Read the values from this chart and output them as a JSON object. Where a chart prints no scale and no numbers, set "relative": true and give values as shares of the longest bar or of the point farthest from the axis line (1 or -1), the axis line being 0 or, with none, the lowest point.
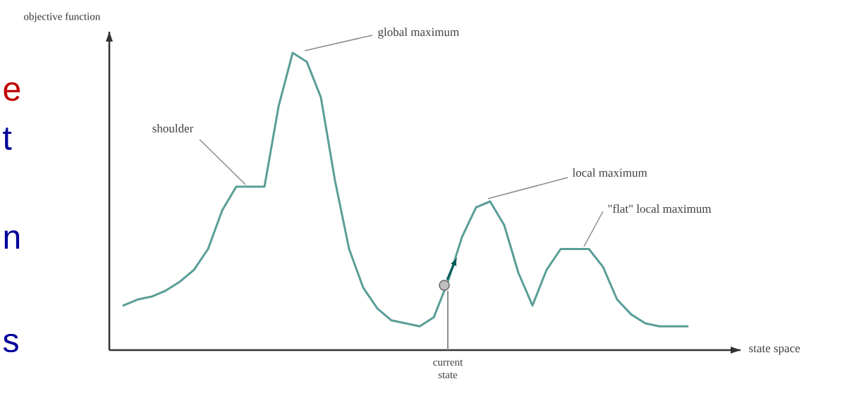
{
  "chart_data": {
    "type": "line",
    "relative": true,
    "xlabel": "state space",
    "ylabel": "objective function",
    "categories": [
      null,
      null,
      null,
      null,
      null,
      null,
      null,
      null,
      null,
      null,
      null,
      null,
      null,
      null,
      null,
      null,
      null,
      null,
      null,
      null,
      null,
      null,
      null,
      null,
      null,
      null,
      null,
      null,
      null,
      null,
      null,
      null,
      null,
      null,
      null,
      null,
      null,
      null,
      null,
      null,
      null
    ],
    "series": [
      {
        "color": "#5a9e98",
        "values": [
          0.15,
          0.17,
          0.18,
          0.2,
          0.23,
          0.27,
          0.34,
          0.47,
          0.55,
          0.55,
          0.55,
          0.82,
          1.0,
          0.97,
          0.85,
          0.57,
          0.34,
          0.21,
          0.14,
          0.1,
          0.09,
          0.08,
          0.11,
          0.23,
          0.38,
          0.48,
          0.5,
          0.42,
          0.26,
          0.15,
          0.27,
          0.34,
          0.34,
          0.34,
          0.28,
          0.17,
          0.12,
          0.09,
          0.08,
          0.08,
          0.08
        ]
      }
    ],
    "annotations": [
      "shoulder",
      "global maximum",
      "local maximum",
      "\"flat\" local maximum",
      "current state",
      "e",
      "t",
      "n",
      "s"
    ]
  }
}
